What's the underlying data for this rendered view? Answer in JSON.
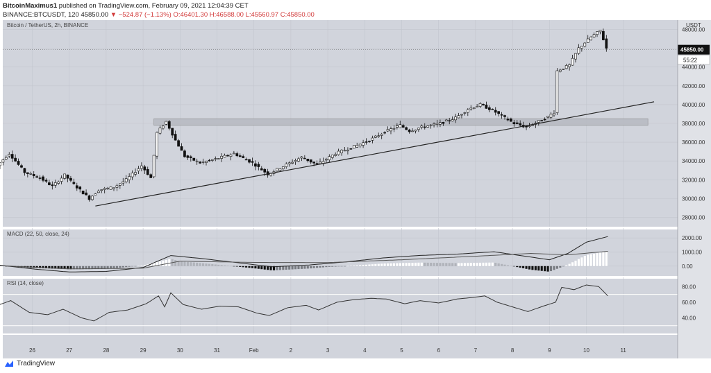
{
  "header": {
    "author": "BitcoinMaximus1",
    "published": "published on TradingView.com, February 09, 2021 12:04:39 CET",
    "symbol": "BINANCE:BTCUSDT, 120",
    "last": "45850.00",
    "change": "▼ −524.87 (−1.13%)",
    "open": "O:46401.30",
    "high": "H:46588.00",
    "low": "L:45560.97",
    "close": "C:45850.00"
  },
  "footer": {
    "brand": "TradingView",
    "logo_icon": "tradingview-logo-icon"
  },
  "colors": {
    "pane_bg": "#d1d4dc",
    "grid": "#c3c6ce",
    "candle_up": "#ffffff",
    "candle_down": "#111111",
    "line": "#222222",
    "zone": "#b8bbc3"
  },
  "chart_data": [
    {
      "type": "candlestick",
      "title": "Bitcoin / TetherUS, 2h, BINANCE",
      "ylabel": "USDT",
      "ylim": [
        27000,
        49000
      ],
      "y_ticks": [
        "48000.00",
        "46000.00",
        "44000.00",
        "42000.00",
        "40000.00",
        "38000.00",
        "36000.00",
        "34000.00",
        "32000.00",
        "30000.00",
        "28000.00"
      ],
      "x_ticks": [
        "26",
        "27",
        "28",
        "29",
        "30",
        "31",
        "Feb",
        "2",
        "3",
        "4",
        "5",
        "6",
        "7",
        "8",
        "9",
        "10",
        "11"
      ],
      "price_badge": "45850.00",
      "countdown_badge": "55:22",
      "support_line": {
        "start": [
          "Jan 27 17:00",
          29200
        ],
        "end": [
          "Feb 11 20:00",
          40300
        ]
      },
      "resistance_zone": {
        "from": "Jan 29 07:00",
        "to": "Feb 11 16:00",
        "low": 37800,
        "high": 38500
      },
      "price_path": [
        [
          "Jan 25 00:00",
          33200
        ],
        [
          "Jan 25 10:00",
          34800
        ],
        [
          "Jan 25 20:00",
          32800
        ],
        [
          "Jan 26 06:00",
          32200
        ],
        [
          "Jan 26 14:00",
          31300
        ],
        [
          "Jan 26 22:00",
          32500
        ],
        [
          "Jan 27 04:00",
          31500
        ],
        [
          "Jan 27 14:00",
          30000
        ],
        [
          "Jan 27 20:00",
          30900
        ],
        [
          "Jan 28 06:00",
          31200
        ],
        [
          "Jan 28 14:00",
          32000
        ],
        [
          "Jan 29 00:00",
          33500
        ],
        [
          "Jan 29 06:00",
          32200
        ],
        [
          "Jan 29 10:00",
          37000
        ],
        [
          "Jan 29 16:00",
          38200
        ],
        [
          "Jan 29 22:00",
          36200
        ],
        [
          "Jan 30 04:00",
          34500
        ],
        [
          "Jan 30 14:00",
          33800
        ],
        [
          "Jan 31 00:00",
          34200
        ],
        [
          "Jan 31 12:00",
          34800
        ],
        [
          "Feb 1 00:00",
          33800
        ],
        [
          "Feb 1 10:00",
          32600
        ],
        [
          "Feb 1 22:00",
          33600
        ],
        [
          "Feb 2 08:00",
          34400
        ],
        [
          "Feb 2 18:00",
          33600
        ],
        [
          "Feb 3 06:00",
          34800
        ],
        [
          "Feb 3 16:00",
          35400
        ],
        [
          "Feb 4 04:00",
          36200
        ],
        [
          "Feb 4 14:00",
          37100
        ],
        [
          "Feb 5 00:00",
          37800
        ],
        [
          "Feb 5 06:00",
          37200
        ],
        [
          "Feb 5 14:00",
          37600
        ],
        [
          "Feb 6 02:00",
          38000
        ],
        [
          "Feb 6 12:00",
          38600
        ],
        [
          "Feb 6 20:00",
          39500
        ],
        [
          "Feb 7 04:00",
          40000
        ],
        [
          "Feb 7 12:00",
          39400
        ],
        [
          "Feb 7 20:00",
          38600
        ],
        [
          "Feb 8 02:00",
          38000
        ],
        [
          "Feb 8 10:00",
          37600
        ],
        [
          "Feb 8 18:00",
          38200
        ],
        [
          "Feb 9 00:00",
          38700
        ],
        [
          "Feb 9 04:00",
          39200
        ],
        [
          "Feb 9 06:00",
          43600
        ],
        [
          "Feb 9 14:00",
          44200
        ],
        [
          "Feb 9 20:00",
          46000
        ],
        [
          "Feb 10 04:00",
          47200
        ],
        [
          "Feb 10 10:00",
          47900
        ],
        [
          "Feb 10 14:00",
          46000
        ]
      ]
    },
    {
      "type": "histogram+line",
      "title": "MACD (22, 50, close, 24)",
      "y_ticks": [
        "2000.00",
        "1000.00",
        "0.00"
      ],
      "ylim": [
        -700,
        2600
      ],
      "macd_path": [
        [
          "Jan 25 00:00",
          100
        ],
        [
          "Jan 26 00:00",
          -200
        ],
        [
          "Jan 27 00:00",
          -420
        ],
        [
          "Jan 28 00:00",
          -380
        ],
        [
          "Jan 29 00:00",
          -100
        ],
        [
          "Jan 29 18:00",
          750
        ],
        [
          "Jan 30 12:00",
          560
        ],
        [
          "Jan 31 12:00",
          260
        ],
        [
          "Feb 1 12:00",
          -50
        ],
        [
          "Feb 2 12:00",
          80
        ],
        [
          "Feb 3 12:00",
          300
        ],
        [
          "Feb 4 12:00",
          580
        ],
        [
          "Feb 5 12:00",
          760
        ],
        [
          "Feb 6 12:00",
          850
        ],
        [
          "Feb 7 12:00",
          1020
        ],
        [
          "Feb 8 12:00",
          640
        ],
        [
          "Feb 9 00:00",
          450
        ],
        [
          "Feb 9 12:00",
          900
        ],
        [
          "Feb 10 00:00",
          1700
        ],
        [
          "Feb 10 14:00",
          2100
        ]
      ],
      "signal_path": [
        [
          "Jan 25 00:00",
          50
        ],
        [
          "Jan 27 00:00",
          -200
        ],
        [
          "Jan 29 00:00",
          -150
        ],
        [
          "Jan 30 00:00",
          350
        ],
        [
          "Feb 1 00:00",
          260
        ],
        [
          "Feb 3 00:00",
          250
        ],
        [
          "Feb 5 00:00",
          450
        ],
        [
          "Feb 7 00:00",
          700
        ],
        [
          "Feb 8 12:00",
          900
        ],
        [
          "Feb 9 12:00",
          800
        ],
        [
          "Feb 10 14:00",
          1050
        ]
      ]
    },
    {
      "type": "line",
      "title": "RSI (14, close)",
      "y_ticks": [
        "80.00",
        "60.00",
        "40.00"
      ],
      "ylim": [
        20,
        90
      ],
      "bands": [
        70,
        30
      ],
      "rsi_path": [
        [
          "Jan 25 00:00",
          55
        ],
        [
          "Jan 25 10:00",
          62
        ],
        [
          "Jan 25 22:00",
          47
        ],
        [
          "Jan 26 10:00",
          44
        ],
        [
          "Jan 26 20:00",
          51
        ],
        [
          "Jan 27 08:00",
          40
        ],
        [
          "Jan 27 16:00",
          36
        ],
        [
          "Jan 28 02:00",
          47
        ],
        [
          "Jan 28 14:00",
          50
        ],
        [
          "Jan 29 02:00",
          58
        ],
        [
          "Jan 29 10:00",
          68
        ],
        [
          "Jan 29 14:00",
          54
        ],
        [
          "Jan 29 18:00",
          72
        ],
        [
          "Jan 30 02:00",
          57
        ],
        [
          "Jan 30 14:00",
          51
        ],
        [
          "Jan 31 02:00",
          55
        ],
        [
          "Jan 31 14:00",
          54
        ],
        [
          "Feb 1 02:00",
          46
        ],
        [
          "Feb 1 10:00",
          43
        ],
        [
          "Feb 1 22:00",
          53
        ],
        [
          "Feb 2 10:00",
          56
        ],
        [
          "Feb 2 18:00",
          50
        ],
        [
          "Feb 3 06:00",
          60
        ],
        [
          "Feb 3 16:00",
          63
        ],
        [
          "Feb 4 04:00",
          65
        ],
        [
          "Feb 4 14:00",
          64
        ],
        [
          "Feb 5 02:00",
          58
        ],
        [
          "Feb 5 12:00",
          62
        ],
        [
          "Feb 6 00:00",
          59
        ],
        [
          "Feb 6 12:00",
          64
        ],
        [
          "Feb 6 22:00",
          66
        ],
        [
          "Feb 7 06:00",
          68
        ],
        [
          "Feb 7 14:00",
          60
        ],
        [
          "Feb 8 00:00",
          54
        ],
        [
          "Feb 8 10:00",
          48
        ],
        [
          "Feb 8 20:00",
          55
        ],
        [
          "Feb 9 04:00",
          60
        ],
        [
          "Feb 9 08:00",
          79
        ],
        [
          "Feb 9 16:00",
          76
        ],
        [
          "Feb 10 00:00",
          82
        ],
        [
          "Feb 10 08:00",
          80
        ],
        [
          "Feb 10 14:00",
          68
        ]
      ]
    }
  ]
}
